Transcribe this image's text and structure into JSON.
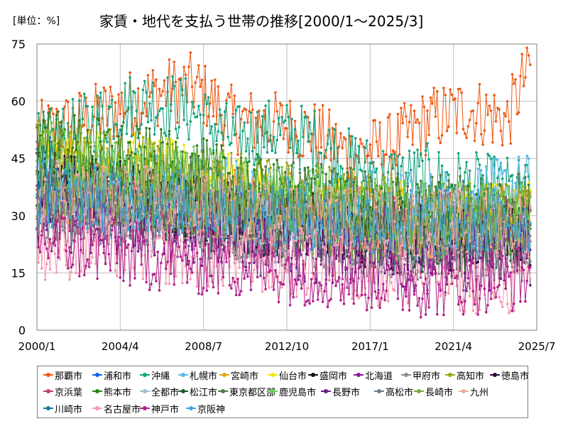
{
  "header": {
    "unit": "[単位：%]",
    "title": "家賃・地代を支払う世帯の推移[2000/1～2025/3]"
  },
  "chart_data": {
    "type": "line",
    "title": "家賃・地代を支払う世帯の推移[2000/1～2025/3]",
    "unit": "[単位：%]",
    "xlabel": "",
    "ylabel": "",
    "ylim": [
      0,
      75
    ],
    "yticks": [
      0,
      15,
      30,
      45,
      60,
      75
    ],
    "xlim": [
      "2000-01",
      "2025-07"
    ],
    "xticks": [
      "2000/1",
      "2004/4",
      "2008/7",
      "2012/10",
      "2017/1",
      "2021/4",
      "2025/7"
    ],
    "grid": true,
    "legend_position": "bottom",
    "series": [
      {
        "name": "那覇市",
        "color": "#f05a14",
        "anchors": [
          [
            2000.0,
            51
          ],
          [
            2003.0,
            56
          ],
          [
            2006.0,
            62
          ],
          [
            2008.0,
            64
          ],
          [
            2010.0,
            55
          ],
          [
            2012.0,
            54
          ],
          [
            2014.0,
            52
          ],
          [
            2016.0,
            46
          ],
          [
            2018.0,
            48
          ],
          [
            2020.0,
            55
          ],
          [
            2022.0,
            58
          ],
          [
            2024.0,
            55
          ],
          [
            2025.17,
            70
          ]
        ]
      },
      {
        "name": "浦和市",
        "color": "#1560e6",
        "anchors": [
          [
            2000.0,
            46
          ],
          [
            2000.5,
            44
          ],
          [
            2001.0,
            42
          ]
        ]
      },
      {
        "name": "沖縄",
        "color": "#12a37f",
        "anchors": [
          [
            2000.0,
            48
          ],
          [
            2002.0,
            52
          ],
          [
            2004.0,
            58
          ],
          [
            2006.0,
            60
          ],
          [
            2008.0,
            57
          ],
          [
            2010.0,
            50
          ],
          [
            2012.0,
            52
          ],
          [
            2014.0,
            50
          ],
          [
            2016.0,
            44
          ],
          [
            2018.0,
            40
          ],
          [
            2020.0,
            40
          ],
          [
            2022.0,
            38
          ],
          [
            2025.17,
            36
          ]
        ]
      },
      {
        "name": "札幌市",
        "color": "#5bb8e8",
        "anchors": [
          [
            2000.0,
            38
          ],
          [
            2004.0,
            40
          ],
          [
            2008.0,
            38
          ],
          [
            2012.0,
            36
          ],
          [
            2016.0,
            33
          ],
          [
            2020.0,
            33
          ],
          [
            2025.17,
            38
          ]
        ]
      },
      {
        "name": "宮崎市",
        "color": "#e8a410",
        "anchors": [
          [
            2000.0,
            42
          ],
          [
            2004.0,
            40
          ],
          [
            2008.0,
            38
          ],
          [
            2012.0,
            34
          ],
          [
            2016.0,
            30
          ],
          [
            2020.0,
            28
          ],
          [
            2025.17,
            30
          ]
        ]
      },
      {
        "name": "仙台市",
        "color": "#f2e600",
        "anchors": [
          [
            2000.0,
            44
          ],
          [
            2004.0,
            44
          ],
          [
            2008.0,
            40
          ],
          [
            2012.0,
            34
          ],
          [
            2016.0,
            30
          ],
          [
            2020.0,
            30
          ],
          [
            2025.17,
            30
          ]
        ]
      },
      {
        "name": "盛岡市",
        "color": "#111111",
        "anchors": [
          [
            2000.0,
            36
          ],
          [
            2004.0,
            34
          ],
          [
            2008.0,
            32
          ],
          [
            2012.0,
            28
          ],
          [
            2016.0,
            26
          ],
          [
            2020.0,
            22
          ],
          [
            2025.17,
            26
          ]
        ]
      },
      {
        "name": "北海道",
        "color": "#8a1a9a",
        "anchors": [
          [
            2000.0,
            34
          ],
          [
            2004.0,
            32
          ],
          [
            2008.0,
            30
          ],
          [
            2012.0,
            28
          ],
          [
            2016.0,
            26
          ],
          [
            2020.0,
            24
          ],
          [
            2025.17,
            26
          ]
        ]
      },
      {
        "name": "甲府市",
        "color": "#8c8c8c",
        "anchors": [
          [
            2000.0,
            32
          ],
          [
            2004.0,
            30
          ],
          [
            2008.0,
            28
          ],
          [
            2012.0,
            24
          ],
          [
            2016.0,
            22
          ],
          [
            2020.0,
            20
          ],
          [
            2025.17,
            22
          ]
        ]
      },
      {
        "name": "高知市",
        "color": "#9aa510",
        "anchors": [
          [
            2000.0,
            46
          ],
          [
            2004.0,
            44
          ],
          [
            2008.0,
            40
          ],
          [
            2012.0,
            36
          ],
          [
            2016.0,
            34
          ],
          [
            2020.0,
            30
          ],
          [
            2025.17,
            30
          ]
        ]
      },
      {
        "name": "徳島市",
        "color": "#2a0a3a",
        "anchors": [
          [
            2000.0,
            38
          ],
          [
            2004.0,
            36
          ],
          [
            2008.0,
            32
          ],
          [
            2012.0,
            28
          ],
          [
            2016.0,
            26
          ],
          [
            2020.0,
            24
          ],
          [
            2025.17,
            26
          ]
        ]
      },
      {
        "name": "京浜葉",
        "color": "#c0445a",
        "anchors": [
          [
            2000.0,
            34
          ],
          [
            2004.0,
            34
          ],
          [
            2008.0,
            32
          ],
          [
            2012.0,
            30
          ],
          [
            2016.0,
            28
          ],
          [
            2020.0,
            28
          ],
          [
            2025.17,
            26
          ]
        ]
      },
      {
        "name": "熊本市",
        "color": "#2e7d1a",
        "anchors": [
          [
            2000.0,
            50
          ],
          [
            2004.0,
            46
          ],
          [
            2008.0,
            42
          ],
          [
            2012.0,
            36
          ],
          [
            2016.0,
            32
          ],
          [
            2020.0,
            30
          ],
          [
            2025.17,
            28
          ]
        ]
      },
      {
        "name": "全都市",
        "color": "#9ac0d6",
        "anchors": [
          [
            2000.0,
            34
          ],
          [
            2004.0,
            33
          ],
          [
            2008.0,
            32
          ],
          [
            2012.0,
            30
          ],
          [
            2016.0,
            29
          ],
          [
            2020.0,
            28
          ],
          [
            2025.17,
            29
          ]
        ]
      },
      {
        "name": "松江市",
        "color": "#175c2c",
        "anchors": [
          [
            2000.0,
            40
          ],
          [
            2004.0,
            36
          ],
          [
            2008.0,
            30
          ],
          [
            2012.0,
            28
          ],
          [
            2016.0,
            26
          ],
          [
            2020.0,
            24
          ],
          [
            2025.17,
            24
          ]
        ]
      },
      {
        "name": "東京都区部",
        "color": "#4d7a45",
        "anchors": [
          [
            2000.0,
            40
          ],
          [
            2004.0,
            40
          ],
          [
            2008.0,
            38
          ],
          [
            2012.0,
            36
          ],
          [
            2016.0,
            34
          ],
          [
            2020.0,
            32
          ],
          [
            2025.17,
            32
          ]
        ]
      },
      {
        "name": "鹿児島市",
        "color": "#66cc55",
        "anchors": [
          [
            2000.0,
            44
          ],
          [
            2004.0,
            42
          ],
          [
            2008.0,
            40
          ],
          [
            2012.0,
            36
          ],
          [
            2016.0,
            32
          ],
          [
            2020.0,
            30
          ],
          [
            2025.17,
            30
          ]
        ]
      },
      {
        "name": "長野市",
        "color": "#6a1a8a",
        "anchors": [
          [
            2000.0,
            30
          ],
          [
            2004.0,
            28
          ],
          [
            2008.0,
            26
          ],
          [
            2012.0,
            22
          ],
          [
            2016.0,
            20
          ],
          [
            2020.0,
            18
          ],
          [
            2025.17,
            20
          ]
        ]
      },
      {
        "name": "高松市",
        "color": "#6e7f8c",
        "anchors": [
          [
            2000.0,
            32
          ],
          [
            2004.0,
            30
          ],
          [
            2008.0,
            28
          ],
          [
            2012.0,
            26
          ],
          [
            2016.0,
            24
          ],
          [
            2020.0,
            22
          ],
          [
            2025.17,
            22
          ]
        ]
      },
      {
        "name": "長崎市",
        "color": "#78a83a",
        "anchors": [
          [
            2000.0,
            38
          ],
          [
            2004.0,
            36
          ],
          [
            2008.0,
            34
          ],
          [
            2012.0,
            30
          ],
          [
            2016.0,
            28
          ],
          [
            2020.0,
            26
          ],
          [
            2025.17,
            28
          ]
        ]
      },
      {
        "name": "九州",
        "color": "#f0a8a0",
        "anchors": [
          [
            2000.0,
            36
          ],
          [
            2004.0,
            35
          ],
          [
            2008.0,
            33
          ],
          [
            2012.0,
            31
          ],
          [
            2016.0,
            29
          ],
          [
            2020.0,
            28
          ],
          [
            2025.17,
            28
          ]
        ]
      },
      {
        "name": "川崎市",
        "color": "#127a9a",
        "anchors": [
          [
            2000.0,
            44
          ],
          [
            2001.0,
            42
          ]
        ]
      },
      {
        "name": "名古屋市",
        "color": "#f59ab0",
        "anchors": [
          [
            2000.0,
            22
          ],
          [
            2004.0,
            22
          ],
          [
            2008.0,
            20
          ],
          [
            2012.0,
            18
          ],
          [
            2016.0,
            16
          ],
          [
            2020.0,
            14
          ],
          [
            2025.17,
            12
          ]
        ]
      },
      {
        "name": "神戸市",
        "color": "#b0208a",
        "anchors": [
          [
            2000.0,
            24
          ],
          [
            2004.0,
            20
          ],
          [
            2008.0,
            18
          ],
          [
            2012.0,
            16
          ],
          [
            2016.0,
            14
          ],
          [
            2020.0,
            12
          ],
          [
            2025.17,
            14
          ]
        ]
      },
      {
        "name": "京阪神",
        "color": "#3aa8d8",
        "anchors": [
          [
            2000.0,
            36
          ],
          [
            2004.0,
            35
          ],
          [
            2008.0,
            33
          ],
          [
            2012.0,
            31
          ],
          [
            2016.0,
            29
          ],
          [
            2020.0,
            28
          ],
          [
            2025.17,
            29
          ]
        ]
      }
    ]
  }
}
